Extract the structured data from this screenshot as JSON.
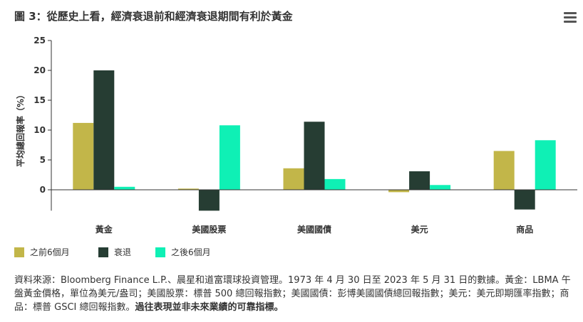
{
  "title": "圖 3：從歷史上看，經濟衰退前和經濟衰退期間有利於黃金",
  "menu_icon": "hamburger-menu-icon",
  "chart_data": {
    "type": "bar",
    "ylabel": "平均總回報率（%）",
    "categories": [
      "黃金",
      "美國股票",
      "美國國債",
      "美元",
      "商品"
    ],
    "ylim": [
      -3.5,
      25
    ],
    "yticks": [
      0,
      5,
      10,
      15,
      20,
      25
    ],
    "series": [
      {
        "name": "之前6個月",
        "color": "#c2b649",
        "values": [
          11.2,
          0.2,
          3.6,
          -0.4,
          6.5
        ]
      },
      {
        "name": "衰退",
        "color": "#263d33",
        "values": [
          20.0,
          -3.5,
          11.4,
          3.1,
          -3.3
        ]
      },
      {
        "name": "之後6個月",
        "color": "#0ff0b5",
        "values": [
          0.5,
          10.8,
          1.8,
          0.8,
          8.3
        ]
      }
    ],
    "legend_position": "bottom-left",
    "grid": false
  },
  "footnote": {
    "text": "資料來源：Bloomberg Finance L.P.、晨星和道富環球投資管理。1973 年 4 月 30 日至 2023 年 5 月 31 日的數據。黃金：LBMA 午盤黃金價格，單位為美元/盎司；美國股票：標普 500 總回報指數；美國國債：彭博美國國債總回報指數；美元：美元即期匯率指數；商品：標普 GSCI 總回報指數。",
    "bold": "過往表現並非未來業績的可靠指標。"
  }
}
